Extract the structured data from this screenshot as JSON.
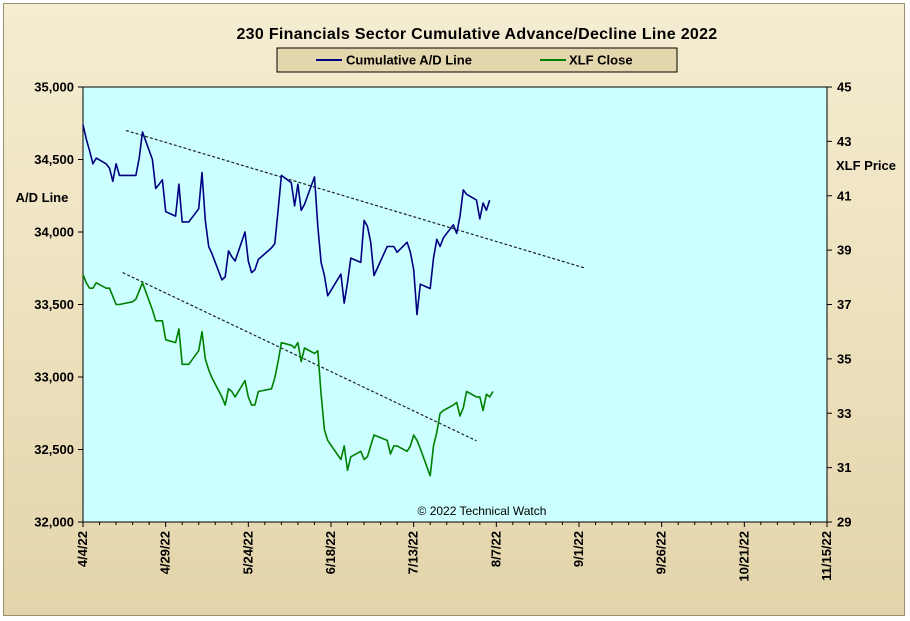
{
  "chart_data": {
    "type": "line",
    "title": "230 Financials  Sector Cumulative  Advance/Decline  Line 2022",
    "ylabel_left": "A/D Line",
    "ylabel_right": "XLF Price",
    "credit": "© 2022 Technical Watch",
    "legend_position": "top-center",
    "grid": false,
    "background": "#ccffff",
    "x_ticks": [
      "4/4/22",
      "4/29/22",
      "5/24/22",
      "6/18/22",
      "7/13/22",
      "8/7/22",
      "9/1/22",
      "9/26/22",
      "10/21/22",
      "11/15/22"
    ],
    "x_range": [
      "2022-04-04",
      "2022-11-15"
    ],
    "y_left": {
      "range": [
        32000,
        35000
      ],
      "ticks": [
        32000,
        32500,
        33000,
        33500,
        34000,
        34500,
        35000
      ],
      "tick_labels": [
        "32,000",
        "32,500",
        "33,000",
        "33,500",
        "34,000",
        "34,500",
        "35,000"
      ]
    },
    "y_right": {
      "range": [
        29,
        45
      ],
      "ticks": [
        29,
        31,
        33,
        35,
        37,
        39,
        41,
        43,
        45
      ],
      "tick_labels": [
        "29",
        "31",
        "33",
        "35",
        "37",
        "39",
        "41",
        "43",
        "45"
      ]
    },
    "series": [
      {
        "name": "Cumulative A/D Line",
        "axis": "left",
        "color": "#000080",
        "points": [
          [
            "2022-04-04",
            34740
          ],
          [
            "2022-04-05",
            34640
          ],
          [
            "2022-04-06",
            34560
          ],
          [
            "2022-04-07",
            34470
          ],
          [
            "2022-04-08",
            34510
          ],
          [
            "2022-04-11",
            34470
          ],
          [
            "2022-04-12",
            34440
          ],
          [
            "2022-04-13",
            34350
          ],
          [
            "2022-04-14",
            34470
          ],
          [
            "2022-04-15",
            34390
          ],
          [
            "2022-04-19",
            34390
          ],
          [
            "2022-04-20",
            34390
          ],
          [
            "2022-04-21",
            34510
          ],
          [
            "2022-04-22",
            34690
          ],
          [
            "2022-04-25",
            34500
          ],
          [
            "2022-04-26",
            34300
          ],
          [
            "2022-04-27",
            34330
          ],
          [
            "2022-04-28",
            34360
          ],
          [
            "2022-04-29",
            34140
          ],
          [
            "2022-05-02",
            34110
          ],
          [
            "2022-05-03",
            34330
          ],
          [
            "2022-05-04",
            34070
          ],
          [
            "2022-05-05",
            34070
          ],
          [
            "2022-05-06",
            34070
          ],
          [
            "2022-05-09",
            34160
          ],
          [
            "2022-05-10",
            34410
          ],
          [
            "2022-05-11",
            34080
          ],
          [
            "2022-05-12",
            33900
          ],
          [
            "2022-05-13",
            33850
          ],
          [
            "2022-05-16",
            33670
          ],
          [
            "2022-05-17",
            33690
          ],
          [
            "2022-05-18",
            33870
          ],
          [
            "2022-05-19",
            33830
          ],
          [
            "2022-05-20",
            33800
          ],
          [
            "2022-05-23",
            34000
          ],
          [
            "2022-05-24",
            33800
          ],
          [
            "2022-05-25",
            33720
          ],
          [
            "2022-05-26",
            33740
          ],
          [
            "2022-05-27",
            33810
          ],
          [
            "2022-05-31",
            33890
          ],
          [
            "2022-06-01",
            33920
          ],
          [
            "2022-06-02",
            34150
          ],
          [
            "2022-06-03",
            34390
          ],
          [
            "2022-06-06",
            34340
          ],
          [
            "2022-06-07",
            34180
          ],
          [
            "2022-06-08",
            34330
          ],
          [
            "2022-06-09",
            34150
          ],
          [
            "2022-06-10",
            34190
          ],
          [
            "2022-06-13",
            34380
          ],
          [
            "2022-06-14",
            34040
          ],
          [
            "2022-06-15",
            33790
          ],
          [
            "2022-06-16",
            33700
          ],
          [
            "2022-06-17",
            33560
          ],
          [
            "2022-06-21",
            33710
          ],
          [
            "2022-06-22",
            33510
          ],
          [
            "2022-06-23",
            33650
          ],
          [
            "2022-06-24",
            33820
          ],
          [
            "2022-06-27",
            33790
          ],
          [
            "2022-06-28",
            34080
          ],
          [
            "2022-06-29",
            34040
          ],
          [
            "2022-06-30",
            33930
          ],
          [
            "2022-07-01",
            33700
          ],
          [
            "2022-07-05",
            33900
          ],
          [
            "2022-07-06",
            33900
          ],
          [
            "2022-07-07",
            33900
          ],
          [
            "2022-07-08",
            33860
          ],
          [
            "2022-07-11",
            33930
          ],
          [
            "2022-07-12",
            33860
          ],
          [
            "2022-07-13",
            33740
          ],
          [
            "2022-07-14",
            33430
          ],
          [
            "2022-07-15",
            33640
          ],
          [
            "2022-07-18",
            33610
          ],
          [
            "2022-07-19",
            33820
          ],
          [
            "2022-07-20",
            33950
          ],
          [
            "2022-07-21",
            33900
          ],
          [
            "2022-07-22",
            33960
          ],
          [
            "2022-07-25",
            34050
          ],
          [
            "2022-07-26",
            33990
          ],
          [
            "2022-07-27",
            34110
          ],
          [
            "2022-07-28",
            34290
          ],
          [
            "2022-07-29",
            34260
          ],
          [
            "2022-08-01",
            34220
          ],
          [
            "2022-08-02",
            34090
          ],
          [
            "2022-08-03",
            34200
          ],
          [
            "2022-08-04",
            34150
          ],
          [
            "2022-08-05",
            34220
          ]
        ]
      },
      {
        "name": "XLF Close",
        "axis": "right",
        "color": "#008000",
        "points": [
          [
            "2022-04-04",
            38.1
          ],
          [
            "2022-04-05",
            37.8
          ],
          [
            "2022-04-06",
            37.6
          ],
          [
            "2022-04-07",
            37.6
          ],
          [
            "2022-04-08",
            37.8
          ],
          [
            "2022-04-11",
            37.6
          ],
          [
            "2022-04-12",
            37.6
          ],
          [
            "2022-04-13",
            37.3
          ],
          [
            "2022-04-14",
            37.0
          ],
          [
            "2022-04-15",
            37.0
          ],
          [
            "2022-04-19",
            37.1
          ],
          [
            "2022-04-20",
            37.2
          ],
          [
            "2022-04-21",
            37.5
          ],
          [
            "2022-04-22",
            37.8
          ],
          [
            "2022-04-25",
            36.8
          ],
          [
            "2022-04-26",
            36.4
          ],
          [
            "2022-04-27",
            36.4
          ],
          [
            "2022-04-28",
            36.4
          ],
          [
            "2022-04-29",
            35.7
          ],
          [
            "2022-05-02",
            35.6
          ],
          [
            "2022-05-03",
            36.1
          ],
          [
            "2022-05-04",
            34.8
          ],
          [
            "2022-05-05",
            34.8
          ],
          [
            "2022-05-06",
            34.8
          ],
          [
            "2022-05-09",
            35.3
          ],
          [
            "2022-05-10",
            36.0
          ],
          [
            "2022-05-11",
            35.0
          ],
          [
            "2022-05-12",
            34.6
          ],
          [
            "2022-05-13",
            34.3
          ],
          [
            "2022-05-16",
            33.6
          ],
          [
            "2022-05-17",
            33.3
          ],
          [
            "2022-05-18",
            33.9
          ],
          [
            "2022-05-19",
            33.8
          ],
          [
            "2022-05-20",
            33.6
          ],
          [
            "2022-05-23",
            34.2
          ],
          [
            "2022-05-24",
            33.6
          ],
          [
            "2022-05-25",
            33.3
          ],
          [
            "2022-05-26",
            33.3
          ],
          [
            "2022-05-27",
            33.8
          ],
          [
            "2022-05-31",
            33.9
          ],
          [
            "2022-06-01",
            34.3
          ],
          [
            "2022-06-02",
            34.9
          ],
          [
            "2022-06-03",
            35.6
          ],
          [
            "2022-06-06",
            35.5
          ],
          [
            "2022-06-07",
            35.4
          ],
          [
            "2022-06-08",
            35.6
          ],
          [
            "2022-06-09",
            34.9
          ],
          [
            "2022-06-10",
            35.4
          ],
          [
            "2022-06-13",
            35.2
          ],
          [
            "2022-06-14",
            35.3
          ],
          [
            "2022-06-15",
            33.7
          ],
          [
            "2022-06-16",
            32.4
          ],
          [
            "2022-06-17",
            32.0
          ],
          [
            "2022-06-21",
            31.3
          ],
          [
            "2022-06-22",
            31.8
          ],
          [
            "2022-06-23",
            30.9
          ],
          [
            "2022-06-24",
            31.4
          ],
          [
            "2022-06-27",
            31.6
          ],
          [
            "2022-06-28",
            31.3
          ],
          [
            "2022-06-29",
            31.4
          ],
          [
            "2022-06-30",
            31.8
          ],
          [
            "2022-07-01",
            32.2
          ],
          [
            "2022-07-05",
            32.0
          ],
          [
            "2022-07-06",
            31.5
          ],
          [
            "2022-07-07",
            31.8
          ],
          [
            "2022-07-08",
            31.8
          ],
          [
            "2022-07-11",
            31.6
          ],
          [
            "2022-07-12",
            31.8
          ],
          [
            "2022-07-13",
            32.2
          ],
          [
            "2022-07-14",
            32.0
          ],
          [
            "2022-07-15",
            31.7
          ],
          [
            "2022-07-18",
            30.7
          ],
          [
            "2022-07-19",
            31.8
          ],
          [
            "2022-07-20",
            32.3
          ],
          [
            "2022-07-21",
            33.0
          ],
          [
            "2022-07-22",
            33.1
          ],
          [
            "2022-07-25",
            33.3
          ],
          [
            "2022-07-26",
            33.4
          ],
          [
            "2022-07-27",
            32.9
          ],
          [
            "2022-07-28",
            33.2
          ],
          [
            "2022-07-29",
            33.8
          ],
          [
            "2022-08-01",
            33.6
          ],
          [
            "2022-08-02",
            33.6
          ],
          [
            "2022-08-03",
            33.1
          ],
          [
            "2022-08-04",
            33.7
          ],
          [
            "2022-08-05",
            33.6
          ],
          [
            "2022-08-06",
            33.8
          ]
        ]
      }
    ],
    "trendlines": [
      {
        "axis": "left",
        "from": [
          "2022-04-17",
          34700
        ],
        "to": [
          "2022-09-03",
          33750
        ]
      },
      {
        "axis": "left",
        "from": [
          "2022-04-16",
          33720
        ],
        "to": [
          "2022-08-01",
          32560
        ]
      }
    ]
  }
}
